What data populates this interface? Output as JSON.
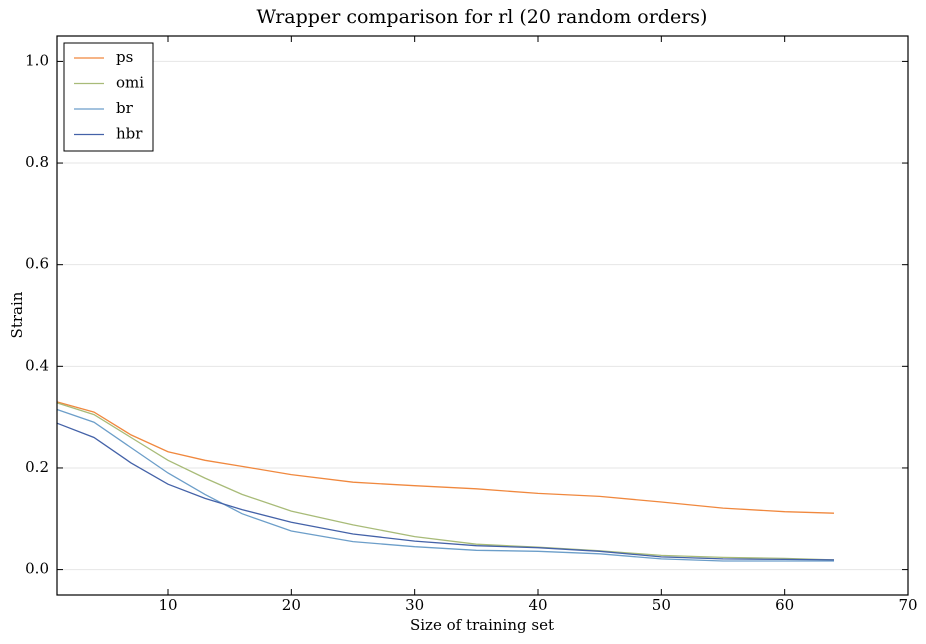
{
  "chart_data": {
    "type": "line",
    "title": "Wrapper comparison for rl (20 random orders)",
    "x_label": "Size of training set",
    "y_label": "Strain",
    "x": [
      1,
      4,
      7,
      10,
      13,
      16,
      20,
      25,
      30,
      35,
      40,
      45,
      50,
      55,
      60,
      64
    ],
    "series": [
      {
        "name": "ps",
        "color": "#f0883e",
        "values": [
          0.33,
          0.31,
          0.265,
          0.232,
          0.215,
          0.203,
          0.187,
          0.172,
          0.165,
          0.159,
          0.15,
          0.144,
          0.133,
          0.121,
          0.114,
          0.111
        ]
      },
      {
        "name": "omi",
        "color": "#a8bb78",
        "values": [
          0.328,
          0.305,
          0.26,
          0.215,
          0.18,
          0.148,
          0.115,
          0.088,
          0.065,
          0.05,
          0.044,
          0.037,
          0.028,
          0.024,
          0.022,
          0.019
        ]
      },
      {
        "name": "br",
        "color": "#6c9ec9",
        "values": [
          0.315,
          0.29,
          0.24,
          0.19,
          0.148,
          0.11,
          0.076,
          0.055,
          0.045,
          0.038,
          0.036,
          0.031,
          0.021,
          0.017,
          0.017,
          0.017
        ]
      },
      {
        "name": "hbr",
        "color": "#4462a8",
        "values": [
          0.288,
          0.26,
          0.21,
          0.168,
          0.14,
          0.118,
          0.093,
          0.07,
          0.056,
          0.047,
          0.043,
          0.036,
          0.025,
          0.021,
          0.02,
          0.019
        ]
      }
    ],
    "xlim": [
      1,
      70
    ],
    "xticks": [
      10,
      20,
      30,
      40,
      50,
      60,
      70
    ],
    "ylim": [
      -0.05,
      1.05
    ],
    "yticks": [
      {
        "value": 0,
        "label": "0.0"
      },
      {
        "value": 0.2,
        "label": "0.2"
      },
      {
        "value": 0.4,
        "label": "0.4"
      },
      {
        "value": 0.6,
        "label": "0.6"
      },
      {
        "value": 0.8,
        "label": "0.8"
      },
      {
        "value": 1,
        "label": "1.0"
      }
    ],
    "grid": true,
    "legend": "upper-left"
  }
}
